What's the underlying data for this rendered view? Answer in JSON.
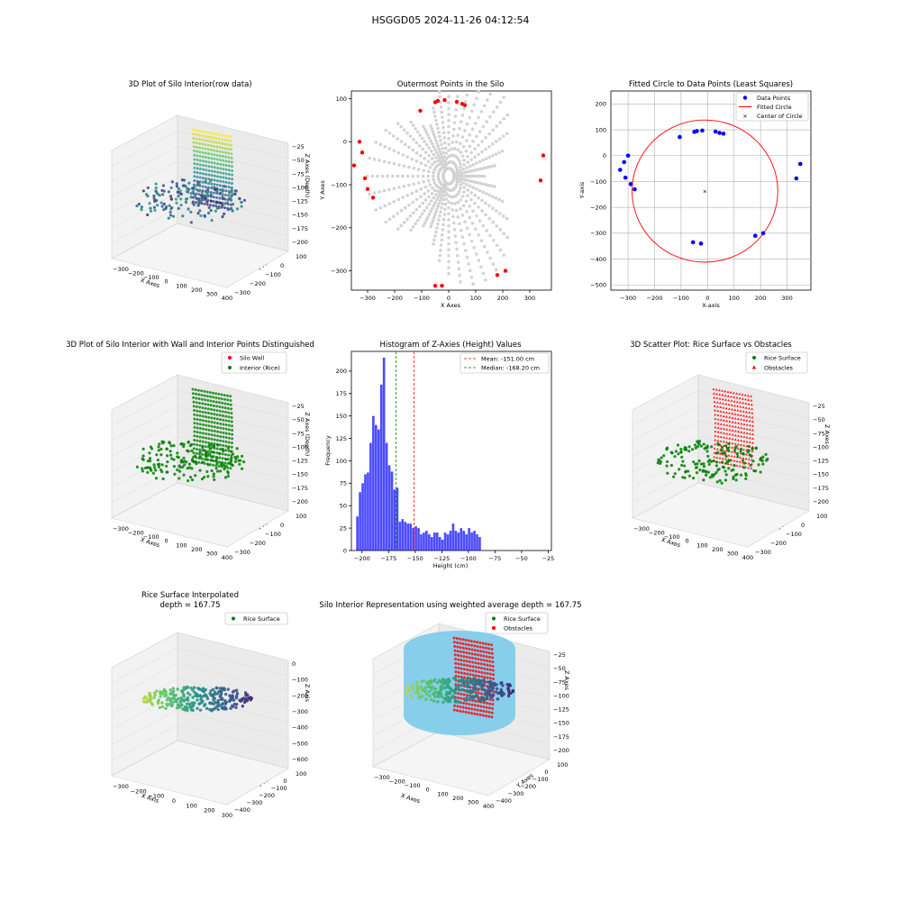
{
  "figure": {
    "title": "HSGGD05 2024-11-26 04:12:54"
  },
  "chart_data": [
    {
      "id": "p3d_raw",
      "type": "scatter3d",
      "title": "3D Plot of Silo Interior(row data)",
      "xlabel": "X Axes",
      "ylabel": "Y Axes",
      "zlabel": "Z Axes (Depth)",
      "xticks": [
        "−300",
        "−200",
        "−100",
        "0",
        "100",
        "200",
        "300",
        "400"
      ],
      "yticks": [
        "100",
        "0",
        "−100",
        "−200",
        "−300"
      ],
      "zticks": [
        "−25",
        "−50",
        "−75",
        "−100",
        "−125",
        "−150",
        "−175",
        "−200"
      ],
      "colormap": "viridis",
      "legend": []
    },
    {
      "id": "outermost",
      "type": "scatter",
      "title": "Outermost Points in the Silo",
      "xlabel": "X Axes",
      "ylabel": "Y Axes",
      "xlim": [
        -360,
        380
      ],
      "ylim": [
        -345,
        118
      ],
      "xticks": [
        -300,
        -200,
        -100,
        0,
        100,
        200,
        300
      ],
      "yticks": [
        -300,
        -200,
        -100,
        0,
        100
      ],
      "series": [
        {
          "color": "#d3d3d3",
          "role": "all_points"
        },
        {
          "color": "#ff0000",
          "role": "outermost",
          "points": [
            [
              -330,
              0
            ],
            [
              -320,
              -25
            ],
            [
              -350,
              -55
            ],
            [
              -310,
              -85
            ],
            [
              -300,
              -110
            ],
            [
              -280,
              -130
            ],
            [
              -105,
              72
            ],
            [
              -50,
              92
            ],
            [
              -40,
              95
            ],
            [
              -15,
              97
            ],
            [
              30,
              93
            ],
            [
              50,
              88
            ],
            [
              60,
              85
            ],
            [
              350,
              -32
            ],
            [
              340,
              -90
            ],
            [
              210,
              -300
            ],
            [
              180,
              -310
            ],
            [
              -50,
              -335
            ],
            [
              -25,
              -335
            ]
          ]
        }
      ]
    },
    {
      "id": "fitted_circle",
      "type": "scatter",
      "title": "Fitted Circle to Data Points (Least Squares)",
      "xlabel": "X-axis",
      "ylabel": "Y-axis",
      "xlim": [
        -365,
        390
      ],
      "ylim": [
        -520,
        250
      ],
      "xticks": [
        -300,
        -200,
        -100,
        0,
        100,
        200,
        300
      ],
      "yticks": [
        -500,
        -400,
        -300,
        -200,
        -100,
        0,
        100,
        200
      ],
      "grid": true,
      "legend_position": "top-right",
      "series": [
        {
          "name": "Data Points",
          "color": "#0000ff",
          "points": [
            [
              -330,
              -55
            ],
            [
              -315,
              -25
            ],
            [
              -300,
              0
            ],
            [
              -310,
              -85
            ],
            [
              -290,
              -110
            ],
            [
              -275,
              -130
            ],
            [
              -105,
              72
            ],
            [
              -50,
              92
            ],
            [
              -40,
              95
            ],
            [
              -20,
              97
            ],
            [
              30,
              93
            ],
            [
              45,
              88
            ],
            [
              60,
              85
            ],
            [
              350,
              -32
            ],
            [
              335,
              -88
            ],
            [
              210,
              -300
            ],
            [
              180,
              -310
            ],
            [
              -55,
              -335
            ],
            [
              -25,
              -340
            ]
          ]
        },
        {
          "name": "Fitted Circle",
          "color": "#ff0000",
          "center": [
            -10,
            -137
          ],
          "radius": 275
        },
        {
          "name": "Center of Circle",
          "color": "#008000",
          "points": [
            [
              -10,
              -137
            ]
          ]
        }
      ]
    },
    {
      "id": "p3d_wall",
      "type": "scatter3d",
      "title": "3D Plot of Silo Interior with Wall and Interior Points Distinguished",
      "xlabel": "X Axes",
      "ylabel": "Y Axes",
      "zlabel": "Z Axes (Depth)",
      "xticks": [
        "−300",
        "−200",
        "−100",
        "0",
        "100",
        "200",
        "300",
        "400"
      ],
      "yticks": [
        "100",
        "0",
        "−100",
        "−200",
        "−300"
      ],
      "zticks": [
        "−25",
        "−50",
        "−75",
        "−100",
        "−125",
        "−150",
        "−175",
        "−200"
      ],
      "legend": [
        {
          "name": "Silo Wall",
          "color": "#ff0000"
        },
        {
          "name": "Interior (Rice)",
          "color": "#008000"
        }
      ]
    },
    {
      "id": "histogram",
      "type": "bar",
      "title": "Histogram of Z-Axies (Height) Values",
      "xlabel": "Height (cm)",
      "ylabel": "Frequency",
      "xlim": [
        -210,
        -22
      ],
      "ylim": [
        0,
        222
      ],
      "xticks": [
        -200,
        -175,
        -150,
        -125,
        -100,
        -75,
        -50,
        -25
      ],
      "yticks": [
        0,
        25,
        50,
        75,
        100,
        125,
        150,
        175,
        200
      ],
      "bar_color": "#0000ff",
      "bin_start": -205.5,
      "bin_width": 2.5,
      "values": [
        38,
        65,
        75,
        85,
        87,
        120,
        150,
        140,
        135,
        185,
        215,
        120,
        95,
        88,
        68,
        70,
        32,
        35,
        32,
        30,
        30,
        25,
        27,
        25,
        18,
        20,
        22,
        18,
        15,
        20,
        20,
        15,
        12,
        20,
        18,
        22,
        30,
        22,
        20,
        25,
        22,
        18,
        25,
        20,
        22,
        18,
        15
      ],
      "legend_position": "top-right",
      "lines": [
        {
          "name": "Mean: -151.00 cm",
          "x": -151.0,
          "color": "#ff0000",
          "style": "dashed"
        },
        {
          "name": "Median: -168.20 cm",
          "x": -168.2,
          "color": "#008000",
          "style": "dashed"
        }
      ]
    },
    {
      "id": "p3d_obstacles",
      "type": "scatter3d",
      "title": "3D Scatter Plot: Rice Surface vs Obstacles",
      "xlabel": "X Axes",
      "ylabel": "Y Axes",
      "zlabel": "Z Axes",
      "xticks": [
        "−300",
        "−200",
        "−100",
        "0",
        "100",
        "200",
        "300",
        "400"
      ],
      "yticks": [
        "100",
        "0",
        "−100",
        "−200",
        "−300"
      ],
      "zticks": [
        "−25",
        "−50",
        "−75",
        "−100",
        "−125",
        "−150",
        "−175",
        "−200"
      ],
      "legend": [
        {
          "name": "Rice Surface",
          "color": "#008000"
        },
        {
          "name": "Obstacles",
          "color": "#ff0000"
        }
      ]
    },
    {
      "id": "p3d_interp",
      "type": "surface3d",
      "title": "Rice Surface Interpolated",
      "subtitle": "depth = 167.75",
      "xlabel": "X Axis",
      "ylabel": "Y Axis",
      "zlabel": "Z Axis",
      "xticks": [
        "−300",
        "−200",
        "−100",
        "0",
        "100",
        "200",
        "300"
      ],
      "yticks": [
        "100",
        "0",
        "−100",
        "−200",
        "−300",
        "−400"
      ],
      "zticks": [
        "0",
        "−100",
        "−200",
        "−300",
        "−400",
        "−500",
        "−600"
      ],
      "legend": [
        {
          "name": "Rice Surface",
          "color": "#008000"
        }
      ]
    },
    {
      "id": "p3d_silo",
      "type": "scatter3d",
      "title": "Silo Interior Representation using weighted average depth = 167.75",
      "xlabel": "X Axes",
      "ylabel": "Y Axes",
      "zlabel": "Z Axes",
      "xticks": [
        "−300",
        "−200",
        "−100",
        "0",
        "100",
        "200",
        "300",
        "400"
      ],
      "yticks": [
        "100",
        "0",
        "−100",
        "−200",
        "−300",
        "−400"
      ],
      "zticks": [
        "−25",
        "−50",
        "−75",
        "−100",
        "−125",
        "−150",
        "−175",
        "−200"
      ],
      "legend": [
        {
          "name": "Rice Surface",
          "color": "#008000"
        },
        {
          "name": "Obstacles",
          "color": "#ff0000"
        }
      ]
    }
  ]
}
